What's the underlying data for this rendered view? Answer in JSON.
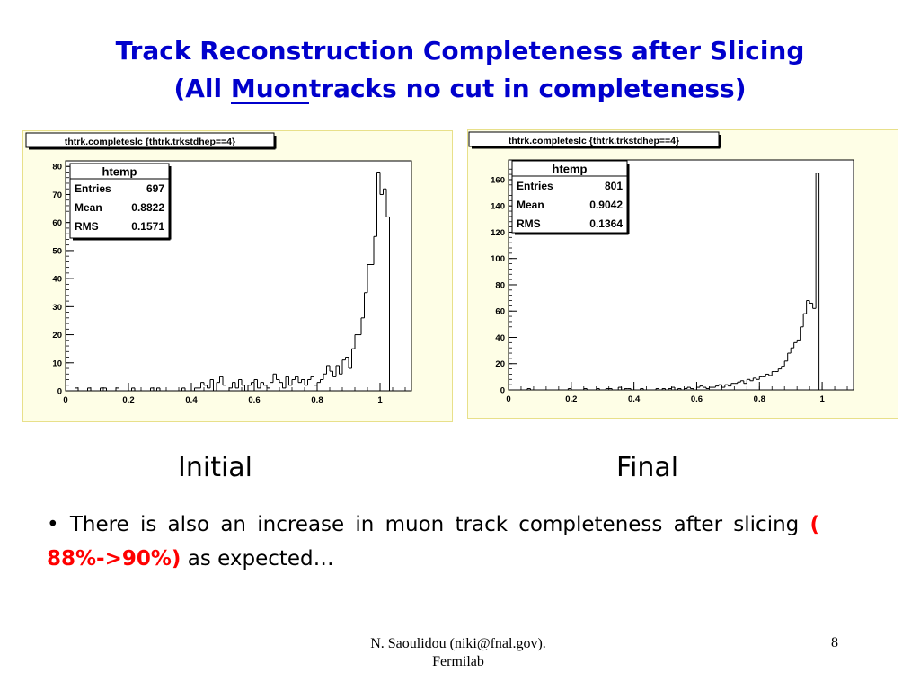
{
  "slide": {
    "title_line1": "Track Reconstruction Completeness after Slicing",
    "title_line2_pre": "(All ",
    "title_line2_u": "Muon ",
    "title_line2_post": "tracks no cut in completeness)",
    "caption_left": "Initial",
    "caption_right": "Final",
    "bullet_mark": "•",
    "bullet_text": "There is also an increase in muon track completeness after slicing",
    "bullet_highlight": "( 88%->90%)",
    "bullet_end": "as expected…",
    "footer_line1": "N. Saoulidou (niki@fnal.gov).",
    "footer_line2": "Fermilab",
    "page_number": "8"
  },
  "colors": {
    "title": "#0000cc",
    "highlight": "#ff0000",
    "panel_bg": "#fefee6",
    "panel_border": "#e8e08a"
  },
  "chart_data": [
    {
      "type": "bar",
      "title": "thtrk.completeslc {thtrk.trkstdhep==4}",
      "stats": {
        "name": "htemp",
        "rows": [
          {
            "label": "Entries",
            "value": "697"
          },
          {
            "label": "Mean",
            "value": "0.8822"
          },
          {
            "label": "RMS",
            "value": "0.1571"
          }
        ]
      },
      "xlim": [
        0,
        1.1
      ],
      "ylim": [
        0,
        82
      ],
      "xticks": [
        0,
        0.2,
        0.4,
        0.6,
        0.8,
        1
      ],
      "xtick_labels": [
        "0",
        "0.2",
        "0.4",
        "0.6",
        "0.8",
        "1"
      ],
      "yticks": [
        0,
        10,
        20,
        30,
        40,
        50,
        60,
        70,
        80
      ],
      "ytick_labels": [
        "0",
        "10",
        "20",
        "30",
        "40",
        "50",
        "60",
        "70",
        "80"
      ],
      "bin_width": 0.01,
      "values": [
        0,
        0,
        0,
        1,
        0,
        0,
        0,
        1,
        0,
        0,
        0,
        1,
        1,
        0,
        0,
        0,
        1,
        0,
        0,
        0,
        0,
        1,
        0,
        0,
        0,
        0,
        0,
        1,
        0,
        1,
        0,
        0,
        0,
        0,
        0,
        0,
        0,
        1,
        0,
        0,
        0,
        1,
        1,
        3,
        2,
        1,
        4,
        0,
        3,
        5,
        2,
        0,
        1,
        3,
        1,
        4,
        2,
        0,
        2,
        3,
        4,
        1,
        3,
        2,
        1,
        3,
        6,
        4,
        3,
        1,
        5,
        2,
        4,
        5,
        3,
        4,
        2,
        4,
        5,
        2,
        3,
        4,
        6,
        9,
        7,
        5,
        9,
        6,
        11,
        12,
        8,
        15,
        20,
        20,
        26,
        35,
        45,
        45,
        55,
        78,
        70,
        72,
        62,
        0,
        0,
        0,
        0,
        0,
        0,
        0,
        0,
        0,
        0,
        0,
        0,
        0,
        0,
        0,
        0,
        0
      ]
    },
    {
      "type": "bar",
      "title": "thtrk.completeslc {thtrk.trkstdhep==4}",
      "stats": {
        "name": "htemp",
        "rows": [
          {
            "label": "Entries",
            "value": "801"
          },
          {
            "label": "Mean",
            "value": "0.9042"
          },
          {
            "label": "RMS",
            "value": "0.1364"
          }
        ]
      },
      "xlim": [
        0,
        1.1
      ],
      "ylim": [
        0,
        175
      ],
      "xticks": [
        0,
        0.2,
        0.4,
        0.6,
        0.8,
        1
      ],
      "xtick_labels": [
        "0",
        "0.2",
        "0.4",
        "0.6",
        "0.8",
        "1"
      ],
      "yticks": [
        0,
        20,
        40,
        60,
        80,
        100,
        120,
        140,
        160
      ],
      "ytick_labels": [
        "0",
        "20",
        "40",
        "60",
        "80",
        "100",
        "120",
        "140",
        "160"
      ],
      "bin_width": 0.01,
      "values": [
        0,
        0,
        0,
        0,
        0,
        0,
        1,
        0,
        0,
        0,
        0,
        0,
        0,
        0,
        0,
        0,
        0,
        0,
        0,
        1,
        0,
        0,
        0,
        0,
        1,
        0,
        0,
        0,
        1,
        0,
        0,
        1,
        1,
        0,
        0,
        2,
        0,
        1,
        1,
        0,
        0,
        0,
        1,
        0,
        0,
        0,
        0,
        1,
        0,
        1,
        0,
        1,
        2,
        0,
        1,
        0,
        1,
        2,
        1,
        0,
        2,
        3,
        2,
        1,
        2,
        2,
        3,
        4,
        2,
        4,
        3,
        5,
        5,
        6,
        7,
        5,
        8,
        7,
        9,
        8,
        10,
        10,
        12,
        11,
        14,
        14,
        16,
        18,
        22,
        28,
        32,
        36,
        38,
        48,
        58,
        68,
        66,
        62,
        165,
        0,
        0,
        0,
        0,
        0,
        0,
        0,
        0,
        0,
        0,
        0,
        0,
        0,
        0,
        0,
        0,
        0
      ]
    }
  ]
}
